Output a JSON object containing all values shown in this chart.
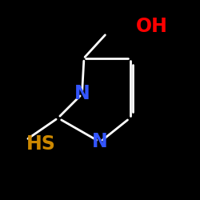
{
  "background_color": "#000000",
  "oh_label": "OH",
  "oh_color": "#ff0000",
  "oh_fontsize": 17,
  "n1_label": "N",
  "n1_color": "#3355ff",
  "n1_fontsize": 17,
  "n2_label": "N",
  "n2_color": "#3355ff",
  "n2_fontsize": 17,
  "hs_label": "HS",
  "hs_color": "#cc8800",
  "hs_fontsize": 17,
  "bond_color": "#ffffff",
  "bond_lw": 2.0
}
